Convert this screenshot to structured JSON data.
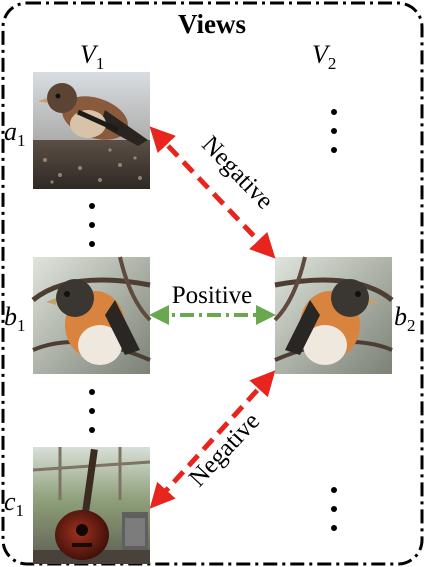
{
  "title": "Views",
  "columns": [
    {
      "label": "V",
      "sub": "1"
    },
    {
      "label": "V",
      "sub": "2"
    }
  ],
  "samples": [
    {
      "label": "a",
      "sub": "1",
      "content": "brown-finch-photo"
    },
    {
      "label": "b",
      "sub": "1",
      "content": "brambling-bird-photo"
    },
    {
      "label": "b",
      "sub": "2",
      "content": "brambling-bird-mirrored-photo"
    },
    {
      "label": "c",
      "sub": "1",
      "content": "acoustic-guitar-photo"
    }
  ],
  "relations": {
    "top": "Negative",
    "middle": "Positive",
    "bottom": "Negative"
  },
  "colors": {
    "negative": "#e8251c",
    "positive": "#6aa84f",
    "frame": "#000000"
  }
}
